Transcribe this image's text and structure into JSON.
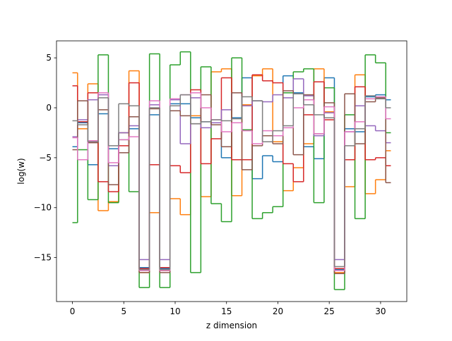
{
  "chart_data": {
    "type": "step",
    "xlabel": "z dimension",
    "ylabel": "log(w)",
    "x": [
      0,
      1,
      2,
      3,
      4,
      5,
      6,
      7,
      8,
      9,
      10,
      11,
      12,
      13,
      14,
      15,
      16,
      17,
      18,
      19,
      20,
      21,
      22,
      23,
      24,
      25,
      26,
      27,
      28,
      29,
      30,
      31
    ],
    "xlim": [
      -1.55,
      32.55
    ],
    "ylim": [
      -19.4,
      6.7
    ],
    "xticks": [
      0,
      5,
      10,
      15,
      20,
      25,
      30
    ],
    "yticks": [
      {
        "value": -15,
        "label": "−15"
      },
      {
        "value": -10,
        "label": "−10"
      },
      {
        "value": -5,
        "label": "−5"
      },
      0,
      5
    ],
    "series": [
      {
        "color": "#1f77b4",
        "values": [
          -3.9,
          -1.5,
          -5.7,
          -0.6,
          -4.1,
          -2.5,
          -2.1,
          -16.0,
          -0.7,
          -16.1,
          0.4,
          0.4,
          -1.0,
          -1.4,
          -1.5,
          -5.0,
          -1.0,
          3.0,
          -7.1,
          -4.8,
          -5.4,
          3.2,
          1.5,
          -3.9,
          -5.1,
          3.0,
          -16.2,
          -2.1,
          -2.4,
          1.1,
          1.3,
          0.8
        ]
      },
      {
        "color": "#ff7f0e",
        "values": [
          3.5,
          -2.1,
          2.4,
          -10.3,
          -9.4,
          -2.5,
          3.7,
          -16.5,
          -10.5,
          -16.3,
          -9.1,
          -10.7,
          -0.8,
          -8.9,
          3.6,
          3.9,
          -8.8,
          0.3,
          3.2,
          3.9,
          -3.4,
          -8.3,
          -6.0,
          -3.6,
          3.9,
          -0.4,
          -16.5,
          -7.9,
          3.3,
          -8.6,
          -7.2,
          -4.3
        ]
      },
      {
        "color": "#2ca02c",
        "values": [
          -11.5,
          -4.2,
          -9.2,
          5.3,
          -9.5,
          -3.2,
          -8.4,
          -18.0,
          5.4,
          -18.0,
          4.3,
          5.6,
          -16.5,
          4.1,
          -9.6,
          -11.4,
          5.0,
          -2.2,
          -11.1,
          -10.5,
          -9.9,
          1.5,
          3.6,
          3.9,
          -9.5,
          2.0,
          -18.2,
          -0.7,
          -11.1,
          5.3,
          4.5,
          -2.5
        ]
      },
      {
        "color": "#d62728",
        "values": [
          2.2,
          -1.4,
          1.5,
          -7.4,
          -8.4,
          -3.8,
          2.5,
          -16.1,
          -5.7,
          -16.0,
          -5.8,
          -6.5,
          1.8,
          -5.6,
          -3.1,
          3.0,
          -5.2,
          -5.2,
          3.3,
          2.7,
          2.5,
          -5.6,
          -7.4,
          -0.7,
          2.6,
          -1.2,
          -16.1,
          -5.2,
          2.1,
          -5.2,
          -5.0,
          -5.8
        ]
      },
      {
        "color": "#9467bd",
        "values": [
          -2.9,
          -1.2,
          0.8,
          1.3,
          -5.8,
          -2.5,
          -1.8,
          -15.2,
          0.3,
          -15.2,
          0.8,
          -3.6,
          1.0,
          -2.0,
          -1.5,
          -0.2,
          1.5,
          0.2,
          0.7,
          0.6,
          1.3,
          1.0,
          2.9,
          1.2,
          -2.8,
          -0.5,
          -15.2,
          -2.4,
          0.2,
          -1.8,
          -2.3,
          -3.5
        ]
      },
      {
        "color": "#8c564b",
        "values": [
          -4.2,
          0.7,
          -3.5,
          -0.2,
          -7.7,
          -4.5,
          -0.9,
          -16.5,
          -0.1,
          -16.5,
          -0.3,
          -0.8,
          -1.6,
          1.3,
          -1.7,
          -3.9,
          1.5,
          -6.2,
          -3.8,
          -2.8,
          -3.6,
          1.7,
          -4.7,
          1.3,
          -2.6,
          0.5,
          -16.6,
          1.4,
          -3.6,
          0.6,
          1.0,
          -7.5
        ]
      },
      {
        "color": "#e377c2",
        "values": [
          -3.0,
          -5.2,
          -3.3,
          1.5,
          -5.5,
          -3.2,
          -2.9,
          -16.3,
          0.7,
          -16.3,
          0.9,
          1.3,
          1.5,
          0.0,
          -1.2,
          -2.4,
          -1.5,
          -2.3,
          -3.6,
          -2.3,
          -2.8,
          -2.0,
          0.0,
          0.8,
          -2.6,
          0.1,
          -16.3,
          -2.4,
          -1.4,
          0.9,
          1.1,
          -1.1
        ]
      },
      {
        "color": "#7f7f7f",
        "values": [
          -1.3,
          -1.7,
          -3.4,
          1.0,
          -3.8,
          0.4,
          0.2,
          -16.2,
          0.0,
          -16.2,
          0.2,
          1.3,
          -1.6,
          -1.4,
          -1.2,
          -1.3,
          -1.1,
          1.1,
          0.7,
          -3.4,
          -2.3,
          -1.8,
          1.4,
          0.3,
          -0.7,
          -1.0,
          -15.9,
          -3.8,
          -2.1,
          1.2,
          0.9,
          0.0
        ]
      }
    ]
  }
}
